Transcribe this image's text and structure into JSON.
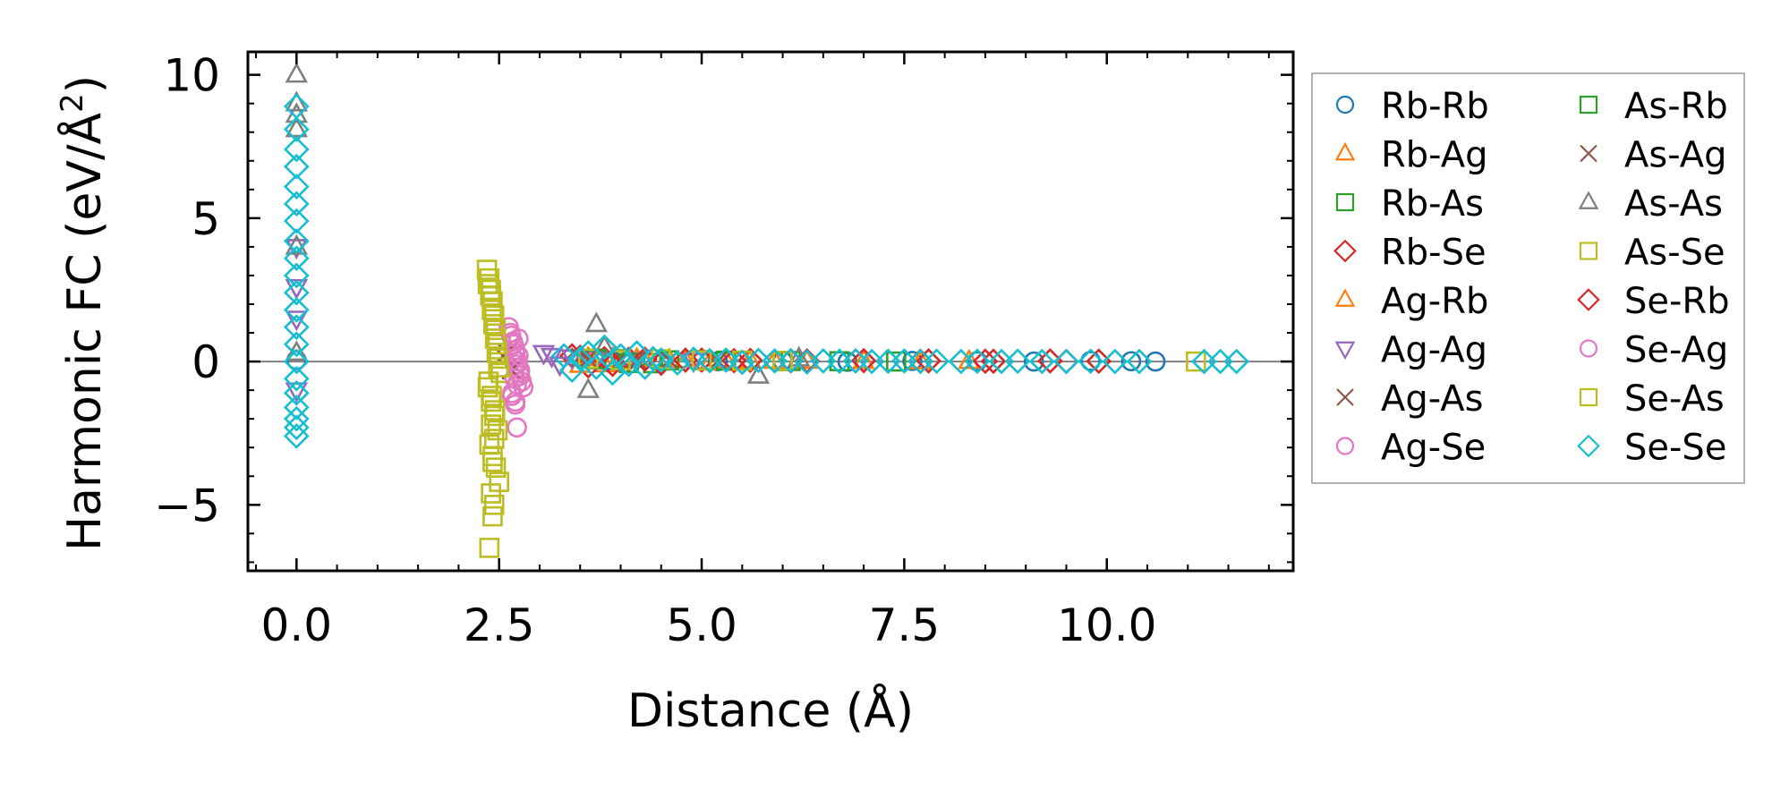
{
  "chart_data": {
    "type": "scatter",
    "title": "",
    "xlabel": "Distance (Å)",
    "ylabel_main": "Harmonic FC (eV/Å",
    "ylabel_sup": "2",
    "ylabel_close": ")",
    "xlim": [
      -0.6,
      12.3
    ],
    "ylim": [
      -7.3,
      10.8
    ],
    "xticks": [
      0.0,
      2.5,
      5.0,
      7.5,
      10.0
    ],
    "xtick_labels": [
      "0.0",
      "2.5",
      "5.0",
      "7.5",
      "10.0"
    ],
    "yticks": [
      -5,
      0,
      5,
      10
    ],
    "ytick_labels": [
      "−5",
      "0",
      "5",
      "10"
    ],
    "grid": false,
    "zero_line": true,
    "legend_position": "outside-right",
    "series": [
      {
        "name": "Rb-Rb",
        "marker": "circle",
        "color": "#1f77b4",
        "x": [
          0.0,
          3.9,
          4.5,
          5.2,
          6.0,
          6.8,
          7.6,
          8.4,
          9.1,
          9.8,
          10.3,
          10.6
        ],
        "y": [
          0.05,
          0.02,
          0.03,
          0.01,
          0.02,
          -0.01,
          0.02,
          0.01,
          0.0,
          0.02,
          0.01,
          0.0
        ]
      },
      {
        "name": "Rb-Ag",
        "marker": "triangle-up",
        "color": "#ff7f0e",
        "x": [
          3.6,
          3.8,
          4.2,
          4.6,
          5.1,
          5.6,
          6.3,
          7.0,
          7.7,
          8.3
        ],
        "y": [
          0.12,
          -0.1,
          0.08,
          0.05,
          -0.04,
          0.03,
          0.02,
          0.01,
          0.0,
          0.01
        ]
      },
      {
        "name": "Rb-As",
        "marker": "square",
        "color": "#2ca02c",
        "x": [
          3.7,
          4.0,
          4.4,
          5.0,
          5.5,
          6.1,
          6.7,
          7.4
        ],
        "y": [
          0.1,
          0.08,
          -0.06,
          0.05,
          0.03,
          0.02,
          0.01,
          0.0
        ]
      },
      {
        "name": "Rb-Se",
        "marker": "diamond",
        "color": "#d62728",
        "x": [
          3.4,
          3.6,
          3.8,
          4.1,
          4.5,
          5.0,
          5.6,
          6.3,
          7.0,
          7.8,
          8.5,
          9.3,
          9.9
        ],
        "y": [
          0.2,
          -0.15,
          0.1,
          0.08,
          -0.06,
          0.05,
          0.04,
          0.02,
          0.03,
          0.02,
          0.01,
          0.02,
          0.01
        ]
      },
      {
        "name": "Ag-Rb",
        "marker": "triangle-up",
        "color": "#ff7f0e",
        "x": [
          3.5,
          3.9,
          4.3,
          4.8,
          5.3,
          5.9
        ],
        "y": [
          -0.12,
          0.09,
          0.06,
          0.04,
          0.03,
          0.02
        ]
      },
      {
        "name": "Ag-Ag",
        "marker": "triangle-down",
        "color": "#9467bd",
        "x": [
          0.0,
          0.0,
          0.0,
          0.0,
          3.05,
          3.15,
          3.25,
          3.4,
          3.7,
          4.2,
          4.9
        ],
        "y": [
          4.0,
          2.6,
          1.5,
          -1.0,
          0.3,
          0.2,
          -0.1,
          0.15,
          0.1,
          0.05,
          0.03
        ]
      },
      {
        "name": "Ag-As",
        "marker": "x",
        "color": "#8c564b",
        "x": [
          2.6,
          2.7,
          3.5,
          4.0,
          4.6,
          5.2
        ],
        "y": [
          0.3,
          -0.2,
          0.15,
          0.1,
          0.05,
          0.02
        ]
      },
      {
        "name": "Ag-Se",
        "marker": "circle",
        "color": "#e377c2",
        "x": [
          2.62,
          2.65,
          2.68,
          2.7,
          2.72,
          2.75,
          2.78,
          2.8,
          2.66,
          2.7,
          2.74,
          2.76,
          2.68,
          2.72,
          2.7
        ],
        "y": [
          1.2,
          0.9,
          0.6,
          0.3,
          -0.1,
          -0.4,
          -0.7,
          -0.9,
          -1.2,
          -1.5,
          0.8,
          -0.5,
          0.1,
          -2.3,
          0.4
        ]
      },
      {
        "name": "As-Rb",
        "marker": "square",
        "color": "#2ca02c",
        "x": [
          3.7,
          4.1,
          4.6,
          5.3,
          6.0
        ],
        "y": [
          0.08,
          -0.05,
          0.04,
          0.03,
          0.01
        ]
      },
      {
        "name": "As-Ag",
        "marker": "x",
        "color": "#8c564b",
        "x": [
          2.55,
          2.65,
          3.6,
          4.2
        ],
        "y": [
          0.2,
          -0.3,
          0.1,
          0.05
        ]
      },
      {
        "name": "As-As",
        "marker": "triangle-up",
        "color": "#7f7f7f",
        "x": [
          0.0,
          0.0,
          0.0,
          0.0,
          0.0,
          0.0,
          3.6,
          3.7,
          3.8,
          5.7,
          6.2
        ],
        "y": [
          10.0,
          9.0,
          8.6,
          8.1,
          4.0,
          0.3,
          -1.0,
          1.3,
          0.5,
          -0.5,
          0.1
        ]
      },
      {
        "name": "As-Se",
        "marker": "square",
        "color": "#bcbd22",
        "x": [
          2.35,
          2.38,
          2.4,
          2.42,
          2.44,
          2.46,
          2.48,
          2.5,
          2.52,
          2.36,
          2.4,
          2.44,
          2.48,
          2.38,
          2.42,
          2.46,
          2.5,
          2.4,
          2.44,
          2.42
        ],
        "y": [
          3.2,
          2.9,
          2.5,
          2.1,
          1.6,
          1.1,
          0.6,
          0.1,
          -0.4,
          -0.9,
          -1.4,
          -1.9,
          -2.4,
          -2.9,
          -3.3,
          -3.7,
          -4.2,
          -4.6,
          -5.0,
          -5.4
        ]
      },
      {
        "name": "Se-Rb",
        "marker": "diamond",
        "color": "#d62728",
        "x": [
          3.5,
          3.9,
          4.3,
          4.8,
          5.4,
          6.1,
          6.9,
          7.7,
          8.6,
          9.5
        ],
        "y": [
          0.15,
          -0.1,
          0.08,
          0.05,
          0.03,
          0.02,
          0.02,
          0.01,
          0.01,
          0.0
        ]
      },
      {
        "name": "Se-Ag",
        "marker": "circle",
        "color": "#e377c2",
        "x": [
          2.64,
          2.67,
          2.7,
          2.73,
          2.76,
          2.69,
          2.72,
          2.66,
          2.74,
          2.7
        ],
        "y": [
          1.0,
          0.7,
          0.4,
          0.0,
          -0.3,
          -0.6,
          -0.8,
          -1.1,
          0.2,
          -1.4
        ]
      },
      {
        "name": "Se-As",
        "marker": "square",
        "color": "#bcbd22",
        "x": [
          2.36,
          2.39,
          2.41,
          2.43,
          2.45,
          2.47,
          2.49,
          2.37,
          2.41,
          2.45,
          2.4,
          2.44,
          2.42,
          2.38,
          3.6,
          4.0,
          4.5,
          5.0,
          5.5,
          6.0,
          11.1
        ],
        "y": [
          2.7,
          2.3,
          1.8,
          1.3,
          0.8,
          0.3,
          -0.2,
          -0.7,
          -1.2,
          -1.7,
          -2.2,
          -2.7,
          -3.5,
          -6.5,
          0.1,
          0.05,
          0.08,
          0.04,
          0.03,
          0.02,
          0.0
        ]
      },
      {
        "name": "Se-Se",
        "marker": "diamond",
        "color": "#17becf",
        "x": [
          0.0,
          0.0,
          0.0,
          0.0,
          0.0,
          0.0,
          0.0,
          0.0,
          0.0,
          0.0,
          0.0,
          0.0,
          0.0,
          0.0,
          0.0,
          0.0,
          0.0,
          0.0,
          0.0,
          0.0,
          0.0,
          3.3,
          3.4,
          3.5,
          3.6,
          3.7,
          3.8,
          3.9,
          4.0,
          4.1,
          4.2,
          4.3,
          4.4,
          4.5,
          4.7,
          4.9,
          5.1,
          5.3,
          5.5,
          5.7,
          5.9,
          6.1,
          6.3,
          6.5,
          6.7,
          6.9,
          7.1,
          7.3,
          7.5,
          7.7,
          7.9,
          8.2,
          8.4,
          8.7,
          8.9,
          9.2,
          9.5,
          9.8,
          10.1,
          10.4,
          11.2,
          11.4,
          11.6
        ],
        "y": [
          8.9,
          8.1,
          7.4,
          6.8,
          6.1,
          5.5,
          4.9,
          4.2,
          3.6,
          3.0,
          2.4,
          1.8,
          1.2,
          0.6,
          0.0,
          -0.6,
          -1.1,
          -1.6,
          -2.0,
          -2.3,
          -2.6,
          0.2,
          -0.3,
          0.1,
          0.3,
          -0.2,
          0.5,
          -0.4,
          0.2,
          -0.1,
          0.3,
          -0.2,
          0.1,
          0.05,
          -0.05,
          0.08,
          0.03,
          0.05,
          -0.03,
          0.04,
          0.02,
          0.03,
          -0.02,
          0.02,
          0.01,
          0.02,
          0.0,
          0.01,
          0.02,
          0.0,
          0.01,
          0.0,
          0.01,
          0.0,
          0.01,
          0.0,
          0.0,
          0.01,
          0.0,
          0.0,
          0.0,
          0.0,
          0.0
        ]
      }
    ]
  }
}
